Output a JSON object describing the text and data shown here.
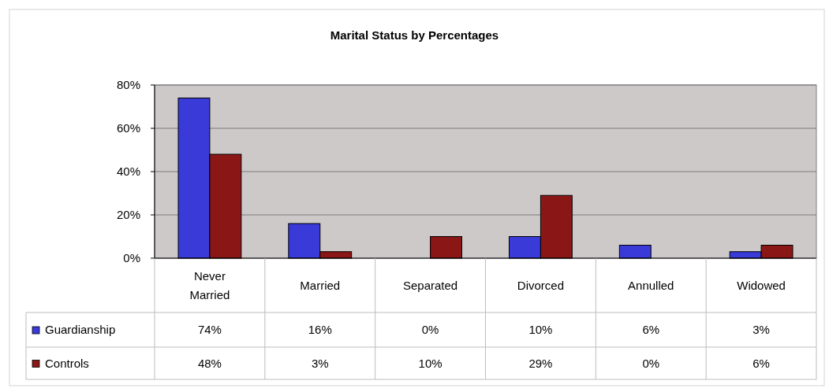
{
  "chart_data": {
    "type": "bar",
    "title": "Marital Status by Percentages",
    "categories": [
      "Never Married",
      "Married",
      "Separated",
      "Divorced",
      "Annulled",
      "Widowed"
    ],
    "series": [
      {
        "name": "Guardianship",
        "color": "#3a3ad8",
        "values": [
          74,
          16,
          0,
          10,
          6,
          3
        ],
        "value_labels": [
          "74%",
          "16%",
          "0%",
          "10%",
          "6%",
          "3%"
        ]
      },
      {
        "name": "Controls",
        "color": "#8b1616",
        "values": [
          48,
          3,
          10,
          29,
          0,
          6
        ],
        "value_labels": [
          "48%",
          "3%",
          "10%",
          "29%",
          "0%",
          "6%"
        ]
      }
    ],
    "ylim": [
      0,
      80
    ],
    "yticks": [
      {
        "value": 0,
        "label": "0%"
      },
      {
        "value": 20,
        "label": "20%"
      },
      {
        "value": 40,
        "label": "40%"
      },
      {
        "value": 60,
        "label": "60%"
      },
      {
        "value": 80,
        "label": "80%"
      }
    ],
    "grid": "y",
    "legend": "bottom left"
  }
}
